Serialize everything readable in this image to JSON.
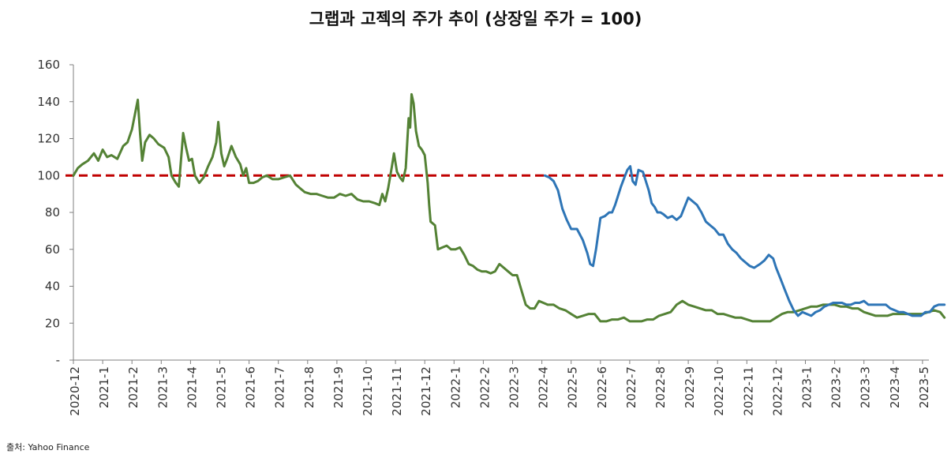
{
  "title": "그랩과 고젝의 주가 추이 (상장일 주가 = 100)",
  "source": "출처: Yahoo Finance",
  "chart_data": {
    "type": "line",
    "title": "그랩과 고젝의 주가 추이 (상장일 주가 = 100)",
    "xlabel": "",
    "ylabel": "",
    "ylim": [
      0,
      160
    ],
    "y_ticks": [
      0,
      20,
      40,
      60,
      80,
      100,
      120,
      140,
      160
    ],
    "y_tick_labels": [
      "-",
      "20",
      "40",
      "60",
      "80",
      "100",
      "120",
      "140",
      "160"
    ],
    "x_tick_labels": [
      "2020-12",
      "2021-1",
      "2021-2",
      "2021-3",
      "2021-4",
      "2021-5",
      "2021-6",
      "2021-7",
      "2021-8",
      "2021-9",
      "2021-10",
      "2021-11",
      "2021-12",
      "2022-1",
      "2022-2",
      "2022-3",
      "2022-4",
      "2022-5",
      "2022-6",
      "2022-7",
      "2022-8",
      "2022-9",
      "2022-10",
      "2022-11",
      "2022-12",
      "2023-1",
      "2023-2",
      "2023-3",
      "2023-4",
      "2023-5"
    ],
    "xlim": [
      0,
      29.8
    ],
    "grid": false,
    "legend": "none",
    "reference_line": {
      "y": 100,
      "color": "#c00000",
      "style": "dashed"
    },
    "series": [
      {
        "color": "#548235",
        "points": [
          [
            0.0,
            100
          ],
          [
            0.15,
            104
          ],
          [
            0.3,
            106
          ],
          [
            0.5,
            108
          ],
          [
            0.7,
            112
          ],
          [
            0.85,
            108
          ],
          [
            1.0,
            114
          ],
          [
            1.15,
            110
          ],
          [
            1.3,
            111
          ],
          [
            1.5,
            109
          ],
          [
            1.7,
            116
          ],
          [
            1.85,
            118
          ],
          [
            2.0,
            125
          ],
          [
            2.1,
            133
          ],
          [
            2.2,
            141
          ],
          [
            2.28,
            122
          ],
          [
            2.35,
            108
          ],
          [
            2.45,
            118
          ],
          [
            2.6,
            122
          ],
          [
            2.75,
            120
          ],
          [
            2.9,
            117
          ],
          [
            3.1,
            115
          ],
          [
            3.25,
            110
          ],
          [
            3.35,
            100
          ],
          [
            3.5,
            96
          ],
          [
            3.6,
            94
          ],
          [
            3.75,
            123
          ],
          [
            3.85,
            115
          ],
          [
            3.95,
            108
          ],
          [
            4.05,
            109
          ],
          [
            4.15,
            100
          ],
          [
            4.3,
            96
          ],
          [
            4.45,
            99
          ],
          [
            4.6,
            105
          ],
          [
            4.75,
            110
          ],
          [
            4.88,
            118
          ],
          [
            4.95,
            129
          ],
          [
            5.05,
            112
          ],
          [
            5.15,
            105
          ],
          [
            5.25,
            109
          ],
          [
            5.4,
            116
          ],
          [
            5.55,
            110
          ],
          [
            5.7,
            106
          ],
          [
            5.8,
            100
          ],
          [
            5.9,
            104
          ],
          [
            6.0,
            96
          ],
          [
            6.15,
            96
          ],
          [
            6.3,
            97
          ],
          [
            6.45,
            99
          ],
          [
            6.6,
            100
          ],
          [
            6.8,
            98
          ],
          [
            7.0,
            98
          ],
          [
            7.2,
            99
          ],
          [
            7.4,
            100
          ],
          [
            7.6,
            95
          ],
          [
            7.75,
            93
          ],
          [
            7.9,
            91
          ],
          [
            8.1,
            90
          ],
          [
            8.3,
            90
          ],
          [
            8.5,
            89
          ],
          [
            8.7,
            88
          ],
          [
            8.9,
            88
          ],
          [
            9.1,
            90
          ],
          [
            9.3,
            89
          ],
          [
            9.5,
            90
          ],
          [
            9.7,
            87
          ],
          [
            9.9,
            86
          ],
          [
            10.1,
            86
          ],
          [
            10.3,
            85
          ],
          [
            10.45,
            84
          ],
          [
            10.55,
            90
          ],
          [
            10.65,
            86
          ],
          [
            10.75,
            93
          ],
          [
            10.88,
            105
          ],
          [
            10.95,
            112
          ],
          [
            11.05,
            102
          ],
          [
            11.15,
            99
          ],
          [
            11.25,
            97
          ],
          [
            11.35,
            104
          ],
          [
            11.45,
            131
          ],
          [
            11.5,
            126
          ],
          [
            11.55,
            144
          ],
          [
            11.62,
            139
          ],
          [
            11.7,
            124
          ],
          [
            11.8,
            116
          ],
          [
            11.9,
            114
          ],
          [
            12.0,
            111
          ],
          [
            12.1,
            96
          ],
          [
            12.15,
            84
          ],
          [
            12.2,
            75
          ],
          [
            12.35,
            73
          ],
          [
            12.45,
            60
          ],
          [
            12.6,
            61
          ],
          [
            12.75,
            62
          ],
          [
            12.9,
            60
          ],
          [
            13.05,
            60
          ],
          [
            13.2,
            61
          ],
          [
            13.35,
            57
          ],
          [
            13.5,
            52
          ],
          [
            13.65,
            51
          ],
          [
            13.8,
            49
          ],
          [
            13.95,
            48
          ],
          [
            14.1,
            48
          ],
          [
            14.25,
            47
          ],
          [
            14.4,
            48
          ],
          [
            14.55,
            52
          ],
          [
            14.7,
            50
          ],
          [
            14.85,
            48
          ],
          [
            15.0,
            46
          ],
          [
            15.15,
            46
          ],
          [
            15.3,
            38
          ],
          [
            15.45,
            30
          ],
          [
            15.6,
            28
          ],
          [
            15.75,
            28
          ],
          [
            15.9,
            32
          ],
          [
            16.05,
            31
          ],
          [
            16.2,
            30
          ],
          [
            16.4,
            30
          ],
          [
            16.6,
            28
          ],
          [
            16.8,
            27
          ],
          [
            17.0,
            25
          ],
          [
            17.2,
            23
          ],
          [
            17.4,
            24
          ],
          [
            17.6,
            25
          ],
          [
            17.8,
            25
          ],
          [
            18.0,
            21
          ],
          [
            18.2,
            21
          ],
          [
            18.4,
            22
          ],
          [
            18.6,
            22
          ],
          [
            18.8,
            23
          ],
          [
            19.0,
            21
          ],
          [
            19.2,
            21
          ],
          [
            19.4,
            21
          ],
          [
            19.6,
            22
          ],
          [
            19.8,
            22
          ],
          [
            20.0,
            24
          ],
          [
            20.2,
            25
          ],
          [
            20.4,
            26
          ],
          [
            20.6,
            30
          ],
          [
            20.8,
            32
          ],
          [
            21.0,
            30
          ],
          [
            21.2,
            29
          ],
          [
            21.4,
            28
          ],
          [
            21.6,
            27
          ],
          [
            21.8,
            27
          ],
          [
            22.0,
            25
          ],
          [
            22.2,
            25
          ],
          [
            22.4,
            24
          ],
          [
            22.6,
            23
          ],
          [
            22.8,
            23
          ],
          [
            23.0,
            22
          ],
          [
            23.2,
            21
          ],
          [
            23.4,
            21
          ],
          [
            23.6,
            21
          ],
          [
            23.8,
            21
          ],
          [
            24.0,
            23
          ],
          [
            24.2,
            25
          ],
          [
            24.4,
            26
          ],
          [
            24.6,
            26
          ],
          [
            24.8,
            27
          ],
          [
            25.0,
            28
          ],
          [
            25.2,
            29
          ],
          [
            25.4,
            29
          ],
          [
            25.6,
            30
          ],
          [
            25.8,
            30
          ],
          [
            26.0,
            30
          ],
          [
            26.2,
            29
          ],
          [
            26.4,
            29
          ],
          [
            26.6,
            28
          ],
          [
            26.8,
            28
          ],
          [
            27.0,
            26
          ],
          [
            27.2,
            25
          ],
          [
            27.4,
            24
          ],
          [
            27.6,
            24
          ],
          [
            27.8,
            24
          ],
          [
            28.0,
            25
          ],
          [
            28.2,
            25
          ],
          [
            28.4,
            25
          ],
          [
            28.6,
            25
          ],
          [
            28.8,
            25
          ],
          [
            29.0,
            25
          ],
          [
            29.2,
            26
          ],
          [
            29.4,
            27
          ],
          [
            29.6,
            26
          ],
          [
            29.75,
            23
          ]
        ]
      },
      {
        "color": "#2e75b6",
        "points": [
          [
            16.1,
            100
          ],
          [
            16.25,
            99
          ],
          [
            16.4,
            97
          ],
          [
            16.55,
            92
          ],
          [
            16.7,
            82
          ],
          [
            16.85,
            76
          ],
          [
            17.0,
            71
          ],
          [
            17.2,
            71
          ],
          [
            17.4,
            65
          ],
          [
            17.55,
            58
          ],
          [
            17.65,
            52
          ],
          [
            17.75,
            51
          ],
          [
            17.85,
            60
          ],
          [
            18.0,
            77
          ],
          [
            18.15,
            78
          ],
          [
            18.3,
            80
          ],
          [
            18.4,
            80
          ],
          [
            18.5,
            84
          ],
          [
            18.6,
            89
          ],
          [
            18.7,
            94
          ],
          [
            18.82,
            99
          ],
          [
            18.92,
            103
          ],
          [
            19.02,
            105
          ],
          [
            19.1,
            97
          ],
          [
            19.2,
            95
          ],
          [
            19.3,
            103
          ],
          [
            19.45,
            102
          ],
          [
            19.55,
            97
          ],
          [
            19.65,
            92
          ],
          [
            19.75,
            85
          ],
          [
            19.85,
            83
          ],
          [
            19.95,
            80
          ],
          [
            20.05,
            80
          ],
          [
            20.15,
            79
          ],
          [
            20.3,
            77
          ],
          [
            20.45,
            78
          ],
          [
            20.6,
            76
          ],
          [
            20.75,
            78
          ],
          [
            20.85,
            82
          ],
          [
            21.0,
            88
          ],
          [
            21.15,
            86
          ],
          [
            21.3,
            84
          ],
          [
            21.45,
            80
          ],
          [
            21.6,
            75
          ],
          [
            21.75,
            73
          ],
          [
            21.9,
            71
          ],
          [
            22.05,
            68
          ],
          [
            22.2,
            68
          ],
          [
            22.35,
            63
          ],
          [
            22.5,
            60
          ],
          [
            22.65,
            58
          ],
          [
            22.8,
            55
          ],
          [
            22.95,
            53
          ],
          [
            23.1,
            51
          ],
          [
            23.25,
            50
          ],
          [
            23.45,
            52
          ],
          [
            23.6,
            54
          ],
          [
            23.75,
            57
          ],
          [
            23.9,
            55
          ],
          [
            24.0,
            50
          ],
          [
            24.15,
            44
          ],
          [
            24.3,
            38
          ],
          [
            24.45,
            32
          ],
          [
            24.6,
            27
          ],
          [
            24.75,
            24
          ],
          [
            24.9,
            26
          ],
          [
            25.05,
            25
          ],
          [
            25.2,
            24
          ],
          [
            25.35,
            26
          ],
          [
            25.5,
            27
          ],
          [
            25.65,
            29
          ],
          [
            25.8,
            30
          ],
          [
            25.95,
            31
          ],
          [
            26.1,
            31
          ],
          [
            26.25,
            31
          ],
          [
            26.4,
            30
          ],
          [
            26.55,
            30
          ],
          [
            26.7,
            31
          ],
          [
            26.85,
            31
          ],
          [
            27.0,
            32
          ],
          [
            27.15,
            30
          ],
          [
            27.3,
            30
          ],
          [
            27.45,
            30
          ],
          [
            27.6,
            30
          ],
          [
            27.75,
            30
          ],
          [
            27.9,
            28
          ],
          [
            28.05,
            27
          ],
          [
            28.2,
            26
          ],
          [
            28.35,
            26
          ],
          [
            28.5,
            25
          ],
          [
            28.65,
            24
          ],
          [
            28.8,
            24
          ],
          [
            28.95,
            24
          ],
          [
            29.1,
            26
          ],
          [
            29.25,
            26
          ],
          [
            29.4,
            29
          ],
          [
            29.55,
            30
          ],
          [
            29.75,
            30
          ]
        ]
      }
    ]
  }
}
